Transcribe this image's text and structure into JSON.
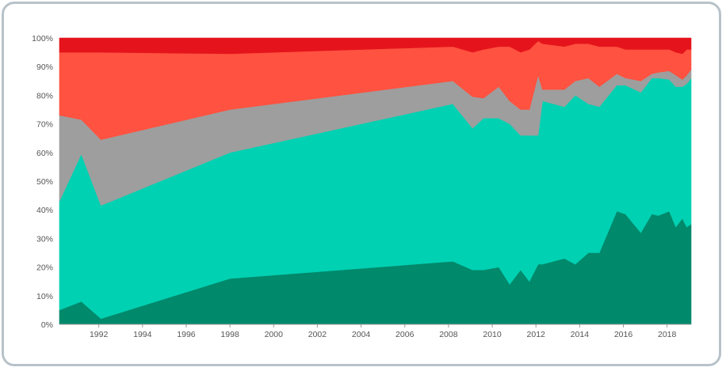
{
  "chart_data": {
    "type": "area",
    "stacked": true,
    "normalized": true,
    "title": "",
    "xlabel": "",
    "ylabel": "",
    "xlim": [
      1990.2,
      2019.1
    ],
    "ylim": [
      0,
      100
    ],
    "y_ticks": [
      "0%",
      "10%",
      "20%",
      "30%",
      "40%",
      "50%",
      "60%",
      "70%",
      "80%",
      "90%",
      "100%"
    ],
    "x_ticks": [
      "1992",
      "1994",
      "1996",
      "1998",
      "2000",
      "2002",
      "2004",
      "2006",
      "2008",
      "2010",
      "2012",
      "2014",
      "2016",
      "2018"
    ],
    "grid": "horizontal",
    "legend": "none",
    "x": [
      1990.2,
      1991.2,
      1992.1,
      1998,
      2008.2,
      2009.1,
      2009.6,
      2010.3,
      2010.8,
      2011.3,
      2011.7,
      2012.1,
      2012.3,
      2013.3,
      2013.8,
      2014.4,
      2014.9,
      2015.7,
      2016.1,
      2016.8,
      2017.3,
      2017.6,
      2018.1,
      2018.4,
      2018.7,
      2018.9,
      2019.1
    ],
    "series": [
      {
        "color": "#00896b",
        "values": [
          5,
          8,
          2,
          16,
          22,
          19,
          19,
          20,
          14,
          19,
          15,
          21,
          21,
          23,
          21,
          25,
          25,
          39.5,
          38.5,
          32,
          38.5,
          38,
          39.5,
          34,
          37,
          34,
          35
        ]
      },
      {
        "color": "#00d1b2",
        "values": [
          38,
          51.5,
          39.5,
          44,
          55,
          49.5,
          53,
          52,
          56,
          47,
          51,
          45,
          57,
          53,
          59,
          52,
          51,
          44,
          45,
          49,
          47.5,
          48,
          46,
          49,
          46,
          50,
          51
        ]
      },
      {
        "color": "#9e9e9e",
        "values": [
          30,
          12,
          23,
          15,
          8,
          11,
          7,
          11,
          8,
          9,
          9,
          21,
          4,
          6,
          5,
          9,
          7,
          4,
          2.5,
          4,
          1.5,
          2,
          3,
          4,
          2.5,
          3,
          3
        ]
      },
      {
        "color": "#ff5240",
        "values": [
          22,
          23.5,
          30.5,
          19.5,
          12,
          15.5,
          17,
          14,
          19,
          20,
          21,
          12,
          16,
          15,
          13,
          12,
          14,
          9.5,
          10,
          11,
          8.5,
          8,
          7.5,
          8,
          9,
          9,
          7
        ]
      },
      {
        "color": "#e5141c",
        "values": [
          5,
          5,
          5,
          5.5,
          3,
          5,
          4,
          3,
          3,
          5,
          4,
          1,
          2,
          3,
          2,
          2,
          3,
          3,
          4,
          4,
          4,
          4,
          4,
          5,
          5.5,
          4,
          4
        ]
      }
    ]
  }
}
